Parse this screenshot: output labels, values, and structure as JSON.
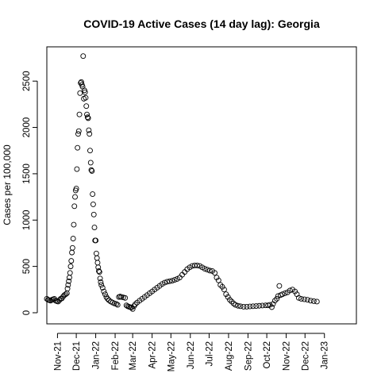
{
  "chart_data": {
    "type": "scatter",
    "title": "COVID-19 Active Cases (14 day lag): Georgia",
    "xlabel": "",
    "ylabel": "Cases per 100,000",
    "x_type": "date",
    "xlim": [
      "2021-10-15",
      "2023-02-21"
    ],
    "ylim": [
      -120,
      2870
    ],
    "y_ticks": [
      0,
      500,
      1000,
      1500,
      2000,
      2500
    ],
    "x_ticks": [
      {
        "date": "2021-11-01",
        "label": "Nov-21"
      },
      {
        "date": "2021-12-01",
        "label": "Dec-21"
      },
      {
        "date": "2022-01-01",
        "label": "Jan-22"
      },
      {
        "date": "2022-02-01",
        "label": "Feb-22"
      },
      {
        "date": "2022-03-01",
        "label": "Mar-22"
      },
      {
        "date": "2022-04-01",
        "label": "Apr-22"
      },
      {
        "date": "2022-05-01",
        "label": "May-22"
      },
      {
        "date": "2022-06-01",
        "label": "Jun-22"
      },
      {
        "date": "2022-07-01",
        "label": "Jul-22"
      },
      {
        "date": "2022-08-01",
        "label": "Aug-22"
      },
      {
        "date": "2022-09-01",
        "label": "Sep-22"
      },
      {
        "date": "2022-10-01",
        "label": "Oct-22"
      },
      {
        "date": "2022-11-01",
        "label": "Nov-22"
      },
      {
        "date": "2022-12-01",
        "label": "Dec-22"
      },
      {
        "date": "2023-01-01",
        "label": "Jan-23"
      }
    ],
    "grid": false,
    "legend": "none",
    "marker": "open-circle",
    "marker_color": "#000000",
    "series": [
      {
        "points": [
          [
            "2021-10-15",
            150
          ],
          [
            "2021-10-17",
            140
          ],
          [
            "2021-10-19",
            135
          ],
          [
            "2021-10-21",
            130
          ],
          [
            "2021-10-23",
            140
          ],
          [
            "2021-10-25",
            145
          ],
          [
            "2021-10-27",
            150
          ],
          [
            "2021-10-29",
            130
          ],
          [
            "2021-10-31",
            125
          ],
          [
            "2021-11-02",
            120
          ],
          [
            "2021-11-04",
            135
          ],
          [
            "2021-11-06",
            150
          ],
          [
            "2021-11-08",
            155
          ],
          [
            "2021-11-10",
            175
          ],
          [
            "2021-11-12",
            190
          ],
          [
            "2021-11-14",
            200
          ],
          [
            "2021-11-16",
            210
          ],
          [
            "2021-11-17",
            260
          ],
          [
            "2021-11-18",
            300
          ],
          [
            "2021-11-19",
            340
          ],
          [
            "2021-11-20",
            380
          ],
          [
            "2021-11-21",
            430
          ],
          [
            "2021-11-22",
            500
          ],
          [
            "2021-11-23",
            560
          ],
          [
            "2021-11-24",
            650
          ],
          [
            "2021-11-25",
            700
          ],
          [
            "2021-11-26",
            800
          ],
          [
            "2021-11-27",
            950
          ],
          [
            "2021-11-28",
            1150
          ],
          [
            "2021-11-29",
            1250
          ],
          [
            "2021-11-30",
            1320
          ],
          [
            "2021-12-01",
            1340
          ],
          [
            "2021-12-02",
            1550
          ],
          [
            "2021-12-03",
            1780
          ],
          [
            "2021-12-04",
            1930
          ],
          [
            "2021-12-05",
            1960
          ],
          [
            "2021-12-06",
            2140
          ],
          [
            "2021-12-07",
            2370
          ],
          [
            "2021-12-08",
            2480
          ],
          [
            "2021-12-09",
            2490
          ],
          [
            "2021-12-10",
            2460
          ],
          [
            "2021-12-11",
            2440
          ],
          [
            "2021-12-12",
            2770
          ],
          [
            "2021-12-13",
            2310
          ],
          [
            "2021-12-14",
            2400
          ],
          [
            "2021-12-15",
            2380
          ],
          [
            "2021-12-16",
            2320
          ],
          [
            "2021-12-17",
            2230
          ],
          [
            "2021-12-18",
            2140
          ],
          [
            "2021-12-19",
            2110
          ],
          [
            "2021-12-20",
            2100
          ],
          [
            "2021-12-21",
            1970
          ],
          [
            "2021-12-22",
            1930
          ],
          [
            "2021-12-23",
            1750
          ],
          [
            "2021-12-24",
            1620
          ],
          [
            "2021-12-25",
            1540
          ],
          [
            "2021-12-26",
            1530
          ],
          [
            "2021-12-27",
            1280
          ],
          [
            "2021-12-28",
            1170
          ],
          [
            "2021-12-29",
            1060
          ],
          [
            "2021-12-30",
            920
          ],
          [
            "2021-12-31",
            780
          ],
          [
            "2022-01-01",
            780
          ],
          [
            "2022-01-02",
            640
          ],
          [
            "2022-01-03",
            590
          ],
          [
            "2022-01-04",
            540
          ],
          [
            "2022-01-05",
            490
          ],
          [
            "2022-01-06",
            450
          ],
          [
            "2022-01-07",
            440
          ],
          [
            "2022-01-08",
            370
          ],
          [
            "2022-01-09",
            330
          ],
          [
            "2022-01-10",
            300
          ],
          [
            "2022-01-12",
            270
          ],
          [
            "2022-01-14",
            230
          ],
          [
            "2022-01-16",
            200
          ],
          [
            "2022-01-18",
            170
          ],
          [
            "2022-01-20",
            150
          ],
          [
            "2022-01-22",
            135
          ],
          [
            "2022-01-25",
            120
          ],
          [
            "2022-01-28",
            110
          ],
          [
            "2022-01-31",
            100
          ],
          [
            "2022-02-03",
            95
          ],
          [
            "2022-02-05",
            85
          ],
          [
            "2022-02-07",
            170
          ],
          [
            "2022-02-09",
            175
          ],
          [
            "2022-02-11",
            170
          ],
          [
            "2022-02-14",
            165
          ],
          [
            "2022-02-17",
            160
          ],
          [
            "2022-02-19",
            80
          ],
          [
            "2022-02-21",
            70
          ],
          [
            "2022-02-23",
            65
          ],
          [
            "2022-02-25",
            60
          ],
          [
            "2022-02-27",
            55
          ],
          [
            "2022-03-01",
            40
          ],
          [
            "2022-03-03",
            70
          ],
          [
            "2022-03-05",
            90
          ],
          [
            "2022-03-08",
            110
          ],
          [
            "2022-03-12",
            130
          ],
          [
            "2022-03-16",
            150
          ],
          [
            "2022-03-20",
            170
          ],
          [
            "2022-03-24",
            190
          ],
          [
            "2022-03-28",
            210
          ],
          [
            "2022-04-01",
            230
          ],
          [
            "2022-04-05",
            250
          ],
          [
            "2022-04-09",
            270
          ],
          [
            "2022-04-13",
            290
          ],
          [
            "2022-04-17",
            310
          ],
          [
            "2022-04-21",
            325
          ],
          [
            "2022-04-25",
            335
          ],
          [
            "2022-04-29",
            340
          ],
          [
            "2022-05-03",
            345
          ],
          [
            "2022-05-07",
            355
          ],
          [
            "2022-05-11",
            365
          ],
          [
            "2022-05-15",
            380
          ],
          [
            "2022-05-19",
            410
          ],
          [
            "2022-05-23",
            440
          ],
          [
            "2022-05-27",
            470
          ],
          [
            "2022-05-31",
            490
          ],
          [
            "2022-06-04",
            505
          ],
          [
            "2022-06-08",
            510
          ],
          [
            "2022-06-12",
            510
          ],
          [
            "2022-06-16",
            505
          ],
          [
            "2022-06-20",
            490
          ],
          [
            "2022-06-24",
            475
          ],
          [
            "2022-06-28",
            465
          ],
          [
            "2022-07-02",
            455
          ],
          [
            "2022-07-06",
            450
          ],
          [
            "2022-07-10",
            430
          ],
          [
            "2022-07-13",
            380
          ],
          [
            "2022-07-16",
            350
          ],
          [
            "2022-07-19",
            300
          ],
          [
            "2022-07-22",
            280
          ],
          [
            "2022-07-25",
            250
          ],
          [
            "2022-07-28",
            200
          ],
          [
            "2022-07-31",
            170
          ],
          [
            "2022-08-03",
            140
          ],
          [
            "2022-08-06",
            120
          ],
          [
            "2022-08-09",
            100
          ],
          [
            "2022-08-12",
            85
          ],
          [
            "2022-08-16",
            75
          ],
          [
            "2022-08-20",
            70
          ],
          [
            "2022-08-25",
            65
          ],
          [
            "2022-08-30",
            65
          ],
          [
            "2022-09-04",
            68
          ],
          [
            "2022-09-09",
            70
          ],
          [
            "2022-09-14",
            72
          ],
          [
            "2022-09-19",
            75
          ],
          [
            "2022-09-24",
            78
          ],
          [
            "2022-09-29",
            80
          ],
          [
            "2022-10-03",
            80
          ],
          [
            "2022-10-06",
            85
          ],
          [
            "2022-10-09",
            60
          ],
          [
            "2022-10-11",
            95
          ],
          [
            "2022-10-14",
            130
          ],
          [
            "2022-10-17",
            150
          ],
          [
            "2022-10-19",
            180
          ],
          [
            "2022-10-21",
            290
          ],
          [
            "2022-10-23",
            190
          ],
          [
            "2022-10-26",
            200
          ],
          [
            "2022-10-30",
            210
          ],
          [
            "2022-11-03",
            220
          ],
          [
            "2022-11-07",
            240
          ],
          [
            "2022-11-11",
            250
          ],
          [
            "2022-11-15",
            230
          ],
          [
            "2022-11-18",
            200
          ],
          [
            "2022-11-21",
            160
          ],
          [
            "2022-11-25",
            150
          ],
          [
            "2022-11-30",
            145
          ],
          [
            "2022-12-05",
            140
          ],
          [
            "2022-12-10",
            130
          ],
          [
            "2022-12-15",
            125
          ],
          [
            "2022-12-20",
            120
          ]
        ]
      }
    ]
  }
}
